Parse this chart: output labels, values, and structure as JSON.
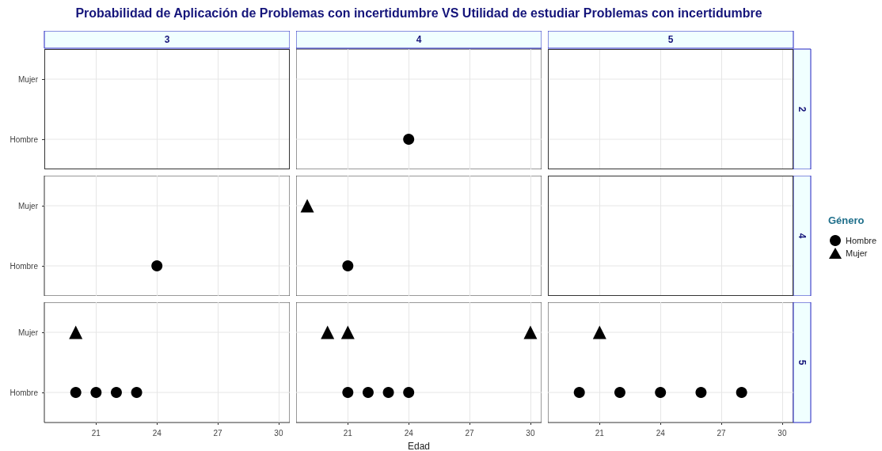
{
  "chart_data": [
    {
      "type": "scatter",
      "title": "Probabilidad de Aplicación de Problemas con incertidumbre VS Utilidad de estudiar Problemas con incertidumbre",
      "annotations": [
        "3"
      ],
      "orientation": "horizontal",
      "categories": [
        "Mujer",
        "Hombre"
      ],
      "xlim": [
        18.45,
        30.55
      ],
      "xticks": [
        21,
        24,
        27,
        30
      ],
      "grid": true,
      "tick_labels": "y"
    },
    {
      "type": "scatter",
      "annotations": [
        "4"
      ],
      "orientation": "horizontal",
      "categories": [
        "Mujer",
        "Hombre"
      ],
      "xlim": [
        18.45,
        30.55
      ],
      "xticks": [
        21,
        24,
        27,
        30
      ],
      "grid": true,
      "tick_labels": false,
      "series": [
        {
          "color": "#000000",
          "marker": "circle",
          "x": [
            "Hombre"
          ],
          "values": [
            24
          ]
        }
      ]
    },
    {
      "type": "scatter",
      "annotations": [
        "5",
        "2"
      ],
      "orientation": "horizontal",
      "categories": [
        "Mujer",
        "Hombre"
      ],
      "xlim": [
        18.45,
        30.55
      ],
      "xticks": [
        21,
        24,
        27,
        30
      ],
      "grid": true,
      "tick_labels": false
    },
    {
      "type": "scatter",
      "orientation": "horizontal",
      "categories": [
        "Mujer",
        "Hombre"
      ],
      "xlim": [
        18.45,
        30.55
      ],
      "xticks": [
        21,
        24,
        27,
        30
      ],
      "grid": true,
      "tick_labels": "y",
      "series": [
        {
          "color": "#000000",
          "marker": "circle",
          "x": [
            "Hombre"
          ],
          "values": [
            24
          ]
        }
      ]
    },
    {
      "type": "scatter",
      "orientation": "horizontal",
      "categories": [
        "Mujer",
        "Hombre"
      ],
      "xlim": [
        18.45,
        30.55
      ],
      "xticks": [
        21,
        24,
        27,
        30
      ],
      "grid": true,
      "tick_labels": false,
      "series": [
        {
          "color": "#000000",
          "marker": "circle",
          "x": [
            "Hombre"
          ],
          "values": [
            21
          ]
        },
        {
          "color": "#000000",
          "marker": "triangle",
          "x": [
            "Mujer"
          ],
          "values": [
            19
          ]
        }
      ]
    },
    {
      "type": "scatter",
      "annotations": [
        "4"
      ],
      "legend_title": "Género",
      "legend": "right",
      "orientation": "horizontal",
      "categories": [
        "Mujer",
        "Hombre"
      ],
      "xlim": [
        18.45,
        30.55
      ],
      "xticks": [
        21,
        24,
        27,
        30
      ],
      "grid": true,
      "tick_labels": false,
      "series": [
        {
          "name": "Hombre",
          "color": "#000000",
          "marker": "circle",
          "values": [
            null,
            null
          ]
        },
        {
          "name": "Mujer",
          "color": "#000000",
          "marker": "triangle",
          "values": [
            null,
            null
          ]
        }
      ]
    },
    {
      "type": "scatter",
      "orientation": "horizontal",
      "categories": [
        "Mujer",
        "Hombre"
      ],
      "xlim": [
        18.45,
        30.55
      ],
      "xticks": [
        21,
        24,
        27,
        30
      ],
      "grid": true,
      "series": [
        {
          "color": "#000000",
          "marker": "circle",
          "x": [
            "Hombre",
            "Hombre",
            "Hombre",
            "Hombre"
          ],
          "values": [
            20,
            21,
            22,
            23
          ]
        },
        {
          "color": "#000000",
          "marker": "triangle",
          "x": [
            "Mujer"
          ],
          "values": [
            20
          ]
        }
      ]
    },
    {
      "type": "scatter",
      "xlabel": "Edad",
      "orientation": "horizontal",
      "categories": [
        "Mujer",
        "Hombre"
      ],
      "xlim": [
        18.45,
        30.55
      ],
      "xticks": [
        21,
        24,
        27,
        30
      ],
      "grid": true,
      "tick_labels": "x",
      "series": [
        {
          "color": "#000000",
          "marker": "circle",
          "x": [
            "Hombre",
            "Hombre",
            "Hombre",
            "Hombre"
          ],
          "values": [
            21,
            22,
            23,
            24
          ]
        },
        {
          "color": "#000000",
          "marker": "triangle",
          "x": [
            "Mujer",
            "Mujer",
            "Mujer"
          ],
          "values": [
            20,
            21,
            30
          ]
        }
      ]
    },
    {
      "type": "scatter",
      "annotations": [
        "5"
      ],
      "orientation": "horizontal",
      "categories": [
        "Mujer",
        "Hombre"
      ],
      "xlim": [
        18.45,
        30.55
      ],
      "xticks": [
        21,
        24,
        27,
        30
      ],
      "grid": true,
      "tick_labels": "x",
      "series": [
        {
          "color": "#000000",
          "marker": "circle",
          "x": [
            "Hombre",
            "Hombre",
            "Hombre",
            "Hombre",
            "Hombre"
          ],
          "values": [
            20,
            22,
            24,
            26,
            28
          ]
        },
        {
          "color": "#000000",
          "marker": "triangle",
          "x": [
            "Mujer"
          ],
          "values": [
            21
          ]
        }
      ]
    }
  ]
}
